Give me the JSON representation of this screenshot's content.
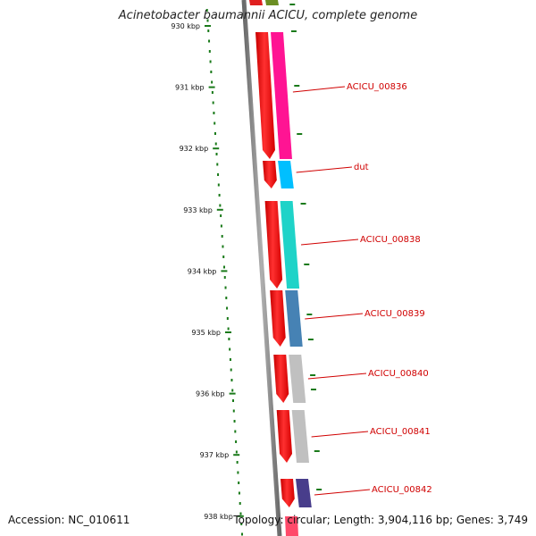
{
  "title": "Acinetobacter baumannii ACICU, complete genome",
  "accession_label": "Accession: NC_010611",
  "topology_label": "Topology: circular; Length: 3,904,116 bp; Genes: 3,749",
  "colors": {
    "backbone": "#8a8a8a",
    "forward_strand": "#ff0000",
    "tick": "#1a7a1a",
    "label": "#d00000"
  },
  "ticks": [
    {
      "label": "930 kbp"
    },
    {
      "label": "931 kbp"
    },
    {
      "label": "932 kbp"
    },
    {
      "label": "933 kbp"
    },
    {
      "label": "934 kbp"
    },
    {
      "label": "935 kbp"
    },
    {
      "label": "936 kbp"
    },
    {
      "label": "937 kbp"
    },
    {
      "label": "938 kbp"
    }
  ],
  "genes": [
    {
      "name": "ACICU_00836",
      "color": "#ff1493"
    },
    {
      "name": "dut",
      "color": "#00bfff"
    },
    {
      "name": "ACICU_00838",
      "color": "#1fd3c8"
    },
    {
      "name": "ACICU_00839",
      "color": "#4682b4"
    },
    {
      "name": "ACICU_00840",
      "color": "#c0c0c0"
    },
    {
      "name": "ACICU_00841",
      "color": "#c0c0c0"
    },
    {
      "name": "ACICU_00842",
      "color": "#483d8b"
    }
  ]
}
